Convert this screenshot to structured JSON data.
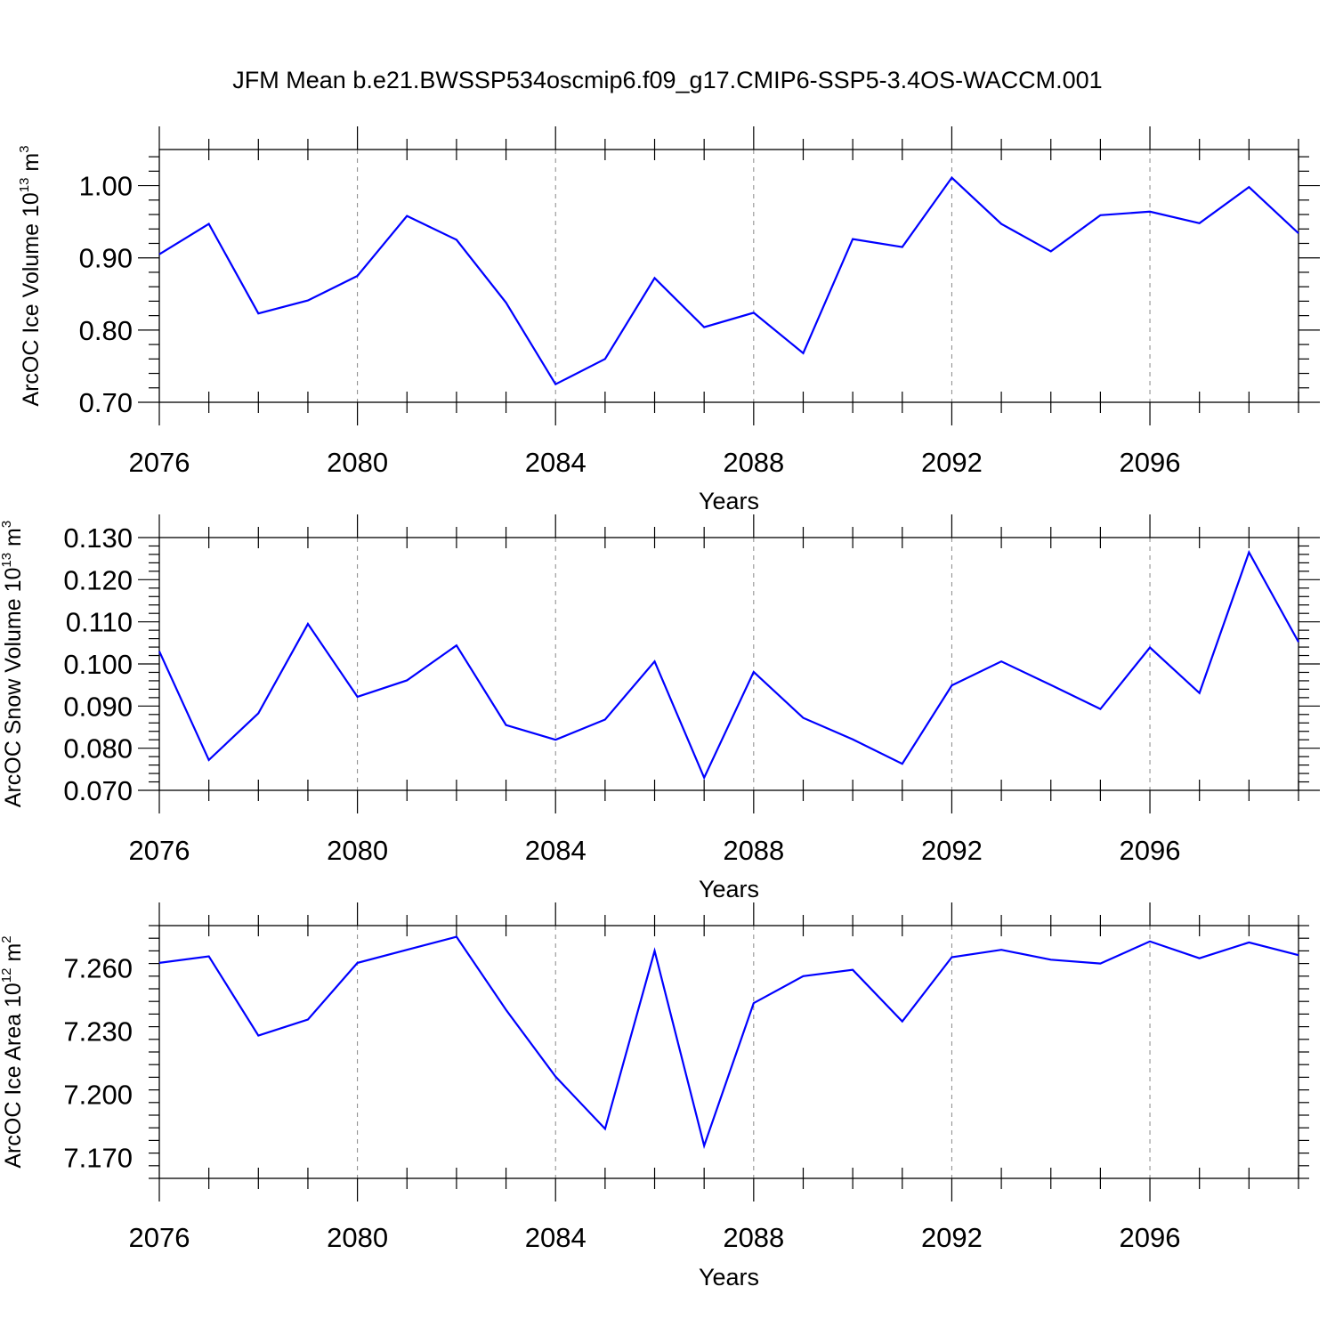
{
  "title": "JFM Mean b.e21.BWSSP534oscmip6.f09_g17.CMIP6-SSP5-3.4OS-WACCM.001",
  "colors": {
    "series": "#0000ff",
    "axis": "#000000",
    "grid": "#888888"
  },
  "chart_data": [
    {
      "type": "line",
      "xlabel": "Years",
      "ylabel": {
        "text": "ArcOC Ice Volume 10",
        "exp": "13",
        "unit": " m",
        "unit_exp": "3"
      },
      "xlim": [
        2076,
        2099
      ],
      "ylim": [
        0.7,
        1.05
      ],
      "xticks": [
        2076,
        2080,
        2084,
        2088,
        2092,
        2096
      ],
      "xtick_labels": [
        "2076",
        "2080",
        "2084",
        "2088",
        "2092",
        "2096"
      ],
      "yticks": [
        0.7,
        0.8,
        0.9,
        1.0
      ],
      "ytick_labels": [
        "0.70",
        "0.80",
        "0.90",
        "1.00"
      ],
      "grid": "vertical dashed at major x ticks",
      "x": [
        2076,
        2077,
        2078,
        2079,
        2080,
        2081,
        2082,
        2083,
        2084,
        2085,
        2086,
        2087,
        2088,
        2089,
        2090,
        2091,
        2092,
        2093,
        2094,
        2095,
        2096,
        2097,
        2098,
        2099
      ],
      "values": [
        0.905,
        0.947,
        0.823,
        0.841,
        0.875,
        0.958,
        0.925,
        0.838,
        0.725,
        0.76,
        0.872,
        0.804,
        0.824,
        0.768,
        0.926,
        0.915,
        1.011,
        0.947,
        0.909,
        0.959,
        0.964,
        0.948,
        0.998,
        0.934
      ]
    },
    {
      "type": "line",
      "xlabel": "Years",
      "ylabel": {
        "text": "ArcOC Snow Volume 10",
        "exp": "13",
        "unit": " m",
        "unit_exp": "3"
      },
      "xlim": [
        2076,
        2099
      ],
      "ylim": [
        0.07,
        0.13
      ],
      "xticks": [
        2076,
        2080,
        2084,
        2088,
        2092,
        2096
      ],
      "xtick_labels": [
        "2076",
        "2080",
        "2084",
        "2088",
        "2092",
        "2096"
      ],
      "yticks": [
        0.07,
        0.08,
        0.09,
        0.1,
        0.11,
        0.12,
        0.13
      ],
      "ytick_labels": [
        "0.070",
        "0.080",
        "0.090",
        "0.100",
        "0.110",
        "0.120",
        "0.130"
      ],
      "grid": "vertical dashed at major x ticks",
      "x": [
        2076,
        2077,
        2078,
        2079,
        2080,
        2081,
        2082,
        2083,
        2084,
        2085,
        2086,
        2087,
        2088,
        2089,
        2090,
        2091,
        2092,
        2093,
        2094,
        2095,
        2096,
        2097,
        2098,
        2099
      ],
      "values": [
        0.103,
        0.0772,
        0.0883,
        0.1095,
        0.0922,
        0.0961,
        0.1044,
        0.0855,
        0.082,
        0.0868,
        0.1006,
        0.073,
        0.0981,
        0.0872,
        0.0821,
        0.0763,
        0.0949,
        0.1006,
        0.095,
        0.0893,
        0.1039,
        0.0931,
        0.1265,
        0.1052
      ]
    },
    {
      "type": "line",
      "xlabel": "Years",
      "ylabel": {
        "text": "ArcOC Ice Area 10",
        "exp": "12",
        "unit": " m",
        "unit_exp": "2"
      },
      "xlim": [
        2076,
        2099
      ],
      "ylim": [
        7.16,
        7.28
      ],
      "xticks": [
        2076,
        2080,
        2084,
        2088,
        2092,
        2096
      ],
      "xtick_labels": [
        "2076",
        "2080",
        "2084",
        "2088",
        "2092",
        "2096"
      ],
      "yticks": [
        7.17,
        7.2,
        7.23,
        7.26
      ],
      "ytick_labels": [
        "7.170",
        "7.200",
        "7.230",
        "7.260"
      ],
      "grid": "vertical dashed at major x ticks",
      "x": [
        2076,
        2077,
        2078,
        2079,
        2080,
        2081,
        2082,
        2083,
        2084,
        2085,
        2086,
        2087,
        2088,
        2089,
        2090,
        2091,
        2092,
        2093,
        2094,
        2095,
        2096,
        2097,
        2098,
        2099
      ],
      "values": [
        7.2623,
        7.2654,
        7.2278,
        7.2354,
        7.2623,
        7.2685,
        7.2747,
        7.24,
        7.2083,
        7.1835,
        7.268,
        7.1755,
        7.2432,
        7.256,
        7.259,
        7.2345,
        7.265,
        7.2685,
        7.2638,
        7.262,
        7.2725,
        7.2645,
        7.272,
        7.266
      ]
    }
  ]
}
